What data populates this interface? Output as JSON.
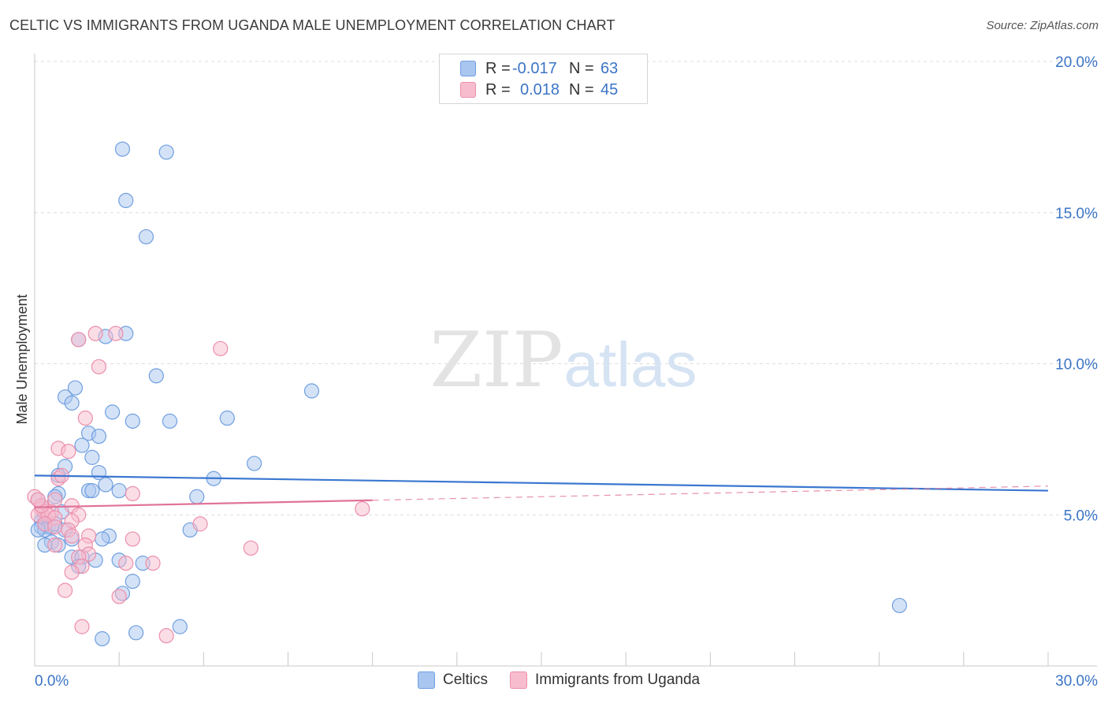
{
  "header": {
    "title": "CELTIC VS IMMIGRANTS FROM UGANDA MALE UNEMPLOYMENT CORRELATION CHART",
    "source": "Source: ZipAtlas.com"
  },
  "legend": {
    "rows": [
      {
        "r_label": "R =",
        "r_value": "-0.017",
        "n_label": "N =",
        "n_value": "63",
        "color": "#a9c6f0",
        "border": "#6f9fe0"
      },
      {
        "r_label": "R =",
        "r_value": "0.018",
        "n_label": "N =",
        "n_value": "45",
        "color": "#f7bccd",
        "border": "#ec8fab"
      }
    ]
  },
  "bottom_legend": {
    "items": [
      {
        "label": "Celtics",
        "color": "#a9c6f0",
        "border": "#6f9fe0"
      },
      {
        "label": "Immigrants from Uganda",
        "color": "#f7bccd",
        "border": "#ec8fab"
      }
    ]
  },
  "watermark": {
    "zip": "ZIP",
    "atlas": "atlas"
  },
  "chart_data": {
    "type": "scatter",
    "title": "CELTIC VS IMMIGRANTS FROM UGANDA MALE UNEMPLOYMENT CORRELATION CHART",
    "xlabel": "",
    "ylabel": "Male Unemployment",
    "xlim": [
      0,
      30
    ],
    "ylim": [
      0,
      20
    ],
    "x_tick_labels": [
      {
        "value": 0,
        "label": "0.0%"
      },
      {
        "value": 30,
        "label": "30.0%"
      }
    ],
    "y_tick_labels": [
      {
        "value": 5,
        "label": "5.0%"
      },
      {
        "value": 10,
        "label": "10.0%"
      },
      {
        "value": 15,
        "label": "15.0%"
      },
      {
        "value": 20,
        "label": "20.0%"
      }
    ],
    "series": [
      {
        "name": "Celtics",
        "color": "#6f9fe0",
        "fill": "#a9c6f0",
        "trend": {
          "x0": 0,
          "y0": 6.3,
          "x1": 30,
          "y1": 5.8,
          "solid_to": 30,
          "line_color": "#3a77d0"
        },
        "points": [
          [
            2.6,
            17.1
          ],
          [
            3.9,
            17.0
          ],
          [
            2.7,
            15.4
          ],
          [
            3.3,
            14.2
          ],
          [
            1.3,
            10.8
          ],
          [
            2.7,
            11.0
          ],
          [
            2.1,
            10.9
          ],
          [
            3.6,
            9.6
          ],
          [
            8.2,
            9.1
          ],
          [
            1.2,
            9.2
          ],
          [
            0.9,
            8.9
          ],
          [
            1.1,
            8.7
          ],
          [
            2.3,
            8.4
          ],
          [
            2.9,
            8.1
          ],
          [
            4.0,
            8.1
          ],
          [
            5.7,
            8.2
          ],
          [
            1.6,
            7.7
          ],
          [
            1.9,
            7.6
          ],
          [
            1.4,
            7.3
          ],
          [
            1.7,
            6.9
          ],
          [
            6.5,
            6.7
          ],
          [
            0.9,
            6.6
          ],
          [
            1.9,
            6.4
          ],
          [
            0.7,
            6.3
          ],
          [
            5.3,
            6.2
          ],
          [
            2.1,
            6.0
          ],
          [
            1.6,
            5.8
          ],
          [
            1.7,
            5.8
          ],
          [
            2.5,
            5.8
          ],
          [
            0.7,
            5.7
          ],
          [
            0.6,
            5.6
          ],
          [
            4.8,
            5.6
          ],
          [
            0.1,
            5.5
          ],
          [
            0.8,
            5.1
          ],
          [
            0.3,
            4.9
          ],
          [
            0.2,
            4.8
          ],
          [
            0.2,
            4.6
          ],
          [
            0.4,
            4.6
          ],
          [
            0.5,
            4.6
          ],
          [
            0.3,
            4.5
          ],
          [
            0.1,
            4.5
          ],
          [
            0.6,
            4.7
          ],
          [
            0.9,
            4.5
          ],
          [
            4.6,
            4.5
          ],
          [
            2.2,
            4.3
          ],
          [
            2.0,
            4.2
          ],
          [
            1.1,
            4.2
          ],
          [
            0.5,
            4.1
          ],
          [
            0.3,
            4.0
          ],
          [
            0.7,
            4.0
          ],
          [
            1.1,
            3.6
          ],
          [
            1.4,
            3.6
          ],
          [
            1.8,
            3.5
          ],
          [
            2.5,
            3.5
          ],
          [
            3.2,
            3.4
          ],
          [
            1.3,
            3.3
          ],
          [
            2.9,
            2.8
          ],
          [
            2.6,
            2.4
          ],
          [
            25.6,
            2.0
          ],
          [
            4.3,
            1.3
          ],
          [
            3.0,
            1.1
          ],
          [
            2.0,
            0.9
          ],
          [
            0.2,
            5.3
          ]
        ]
      },
      {
        "name": "Immigrants from Uganda",
        "color": "#ec8fab",
        "fill": "#f7bccd",
        "trend": {
          "x0": 0,
          "y0": 5.25,
          "x1": 30,
          "y1": 5.95,
          "solid_to": 10,
          "line_color": "#e0739a"
        },
        "points": [
          [
            1.8,
            11.0
          ],
          [
            2.4,
            11.0
          ],
          [
            1.3,
            10.8
          ],
          [
            5.5,
            10.5
          ],
          [
            1.9,
            9.9
          ],
          [
            1.5,
            8.2
          ],
          [
            0.7,
            7.2
          ],
          [
            1.0,
            7.1
          ],
          [
            0.7,
            6.2
          ],
          [
            0.8,
            6.3
          ],
          [
            2.9,
            5.7
          ],
          [
            0.0,
            5.6
          ],
          [
            0.6,
            5.5
          ],
          [
            1.1,
            5.3
          ],
          [
            0.2,
            5.2
          ],
          [
            0.3,
            5.1
          ],
          [
            0.5,
            5.1
          ],
          [
            0.1,
            5.0
          ],
          [
            0.4,
            5.0
          ],
          [
            1.3,
            5.0
          ],
          [
            0.6,
            4.9
          ],
          [
            1.1,
            4.8
          ],
          [
            0.3,
            4.7
          ],
          [
            4.9,
            4.7
          ],
          [
            0.6,
            4.6
          ],
          [
            1.0,
            4.5
          ],
          [
            1.1,
            4.3
          ],
          [
            1.6,
            4.3
          ],
          [
            2.9,
            4.2
          ],
          [
            0.6,
            4.0
          ],
          [
            1.5,
            4.0
          ],
          [
            6.4,
            3.9
          ],
          [
            1.6,
            3.7
          ],
          [
            1.3,
            3.6
          ],
          [
            3.5,
            3.4
          ],
          [
            2.7,
            3.4
          ],
          [
            1.4,
            3.3
          ],
          [
            1.1,
            3.1
          ],
          [
            0.9,
            2.5
          ],
          [
            2.5,
            2.3
          ],
          [
            1.4,
            1.3
          ],
          [
            3.9,
            1.0
          ],
          [
            9.7,
            5.2
          ],
          [
            0.2,
            5.3
          ],
          [
            0.1,
            5.5
          ]
        ]
      }
    ]
  }
}
